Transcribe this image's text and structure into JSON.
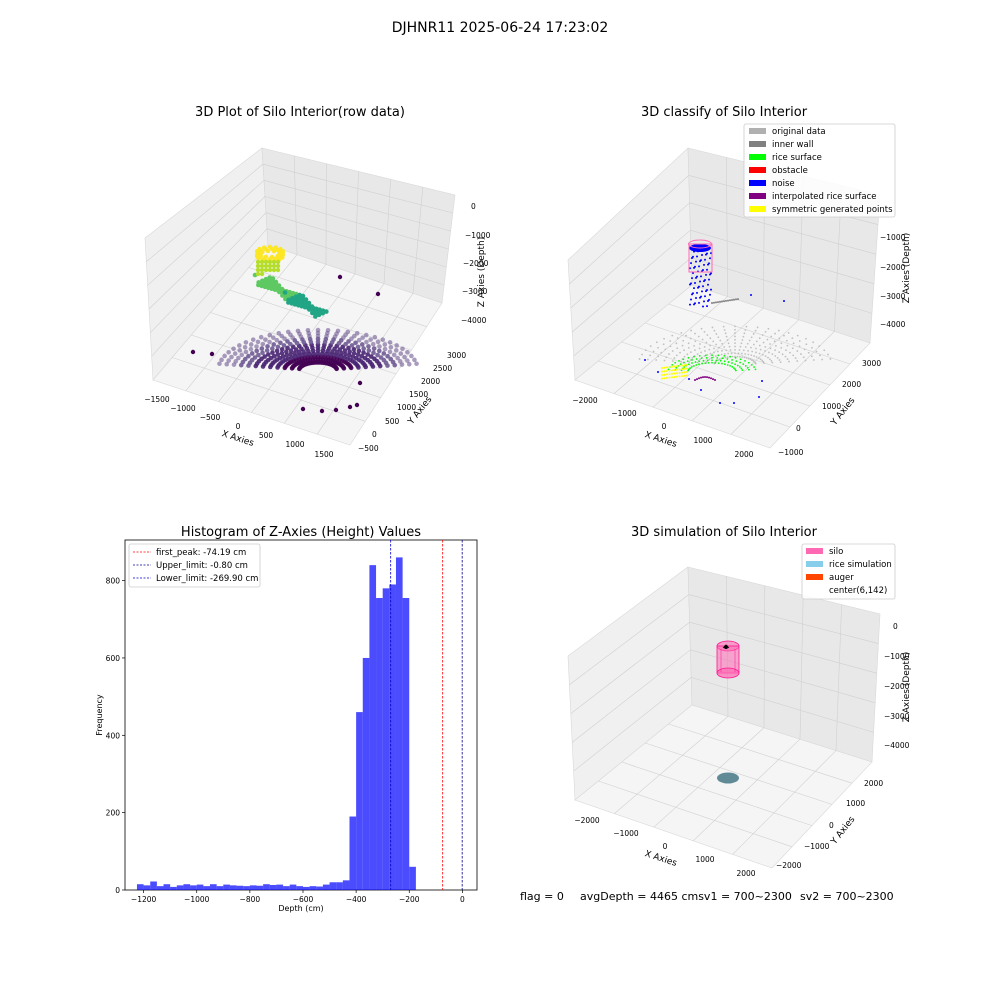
{
  "suptitle": "DJHNR11 2025-06-24 17:23:02",
  "panel_raw": {
    "title": "3D Plot of Silo Interior(row data)",
    "xlabel": "X Axies",
    "ylabel": "Y Axies",
    "zlabel": "Z Axies (Depth)",
    "xticks": [
      "−1500",
      "−1000",
      "−500",
      "0",
      "500",
      "1000",
      "1500"
    ],
    "yticks": [
      "−500",
      "0",
      "500",
      "1000",
      "1500",
      "2000",
      "2500",
      "3000"
    ],
    "zticks": [
      "0",
      "−1000",
      "−2000",
      "−3000",
      "−4000"
    ]
  },
  "panel_classify": {
    "title": "3D classify of Silo Interior",
    "xlabel": "X Axies",
    "ylabel": "Y Axies",
    "zlabel": "Z Axies (Depth)",
    "xticks": [
      "−2000",
      "−1000",
      "0",
      "1000",
      "2000"
    ],
    "yticks": [
      "−1000",
      "0",
      "1000",
      "2000",
      "3000"
    ],
    "zticks": [
      "−1000",
      "−2000",
      "−3000",
      "−4000"
    ],
    "legend": [
      {
        "label": "original data",
        "color": "#b0b0b0"
      },
      {
        "label": "inner wall",
        "color": "#808080"
      },
      {
        "label": "rice surface",
        "color": "#00ff00"
      },
      {
        "label": "obstacle",
        "color": "#ff0000"
      },
      {
        "label": "noise",
        "color": "#0000ff"
      },
      {
        "label": "interpolated rice surface",
        "color": "#800080"
      },
      {
        "label": "symmetric generated points",
        "color": "#ffff00"
      }
    ]
  },
  "panel_sim": {
    "title": "3D simulation of Silo Interior",
    "xlabel": "X Axies",
    "ylabel": "Y Axies",
    "zlabel": "Z Axies (Depth)",
    "xticks": [
      "−2000",
      "−1000",
      "0",
      "1000",
      "2000"
    ],
    "yticks": [
      "−2000",
      "−1000",
      "0",
      "1000",
      "2000"
    ],
    "zticks": [
      "0",
      "−1000",
      "−2000",
      "−3000",
      "−4000"
    ],
    "legend": [
      {
        "label": "silo",
        "color": "#ff69b4"
      },
      {
        "label": "rice simulation",
        "color": "#87ceeb"
      },
      {
        "label": "auger",
        "color": "#ff4500"
      },
      {
        "label": "center(6,142)",
        "color": ""
      }
    ]
  },
  "footer": {
    "flag": "flag = 0",
    "avg": "avgDepth = 4465 cmsv1 = 700~2300",
    "sv2": "sv2 = 700~2300"
  },
  "chart_data": {
    "type": "bar",
    "title": "Histogram of Z-Axies (Height) Values",
    "xlabel": "Depth (cm)",
    "ylabel": "Frequency",
    "xlim": [
      -1270,
      55
    ],
    "ylim": [
      0,
      905
    ],
    "xticks": [
      -1200,
      -1000,
      -800,
      -600,
      -400,
      -200,
      0
    ],
    "xtick_labels": [
      "−1200",
      "−1000",
      "−800",
      "−600",
      "−400",
      "−200",
      "0"
    ],
    "yticks": [
      0,
      200,
      400,
      600,
      800
    ],
    "bin_edges_start": -1225,
    "bin_width": 25,
    "values": [
      15,
      12,
      22,
      10,
      15,
      8,
      12,
      15,
      12,
      14,
      10,
      15,
      10,
      14,
      12,
      11,
      10,
      12,
      11,
      15,
      13,
      14,
      10,
      14,
      10,
      8,
      10,
      9,
      14,
      20,
      20,
      25,
      190,
      460,
      600,
      840,
      755,
      780,
      790,
      860,
      755,
      60
    ],
    "color": "#0000ff",
    "lines": [
      {
        "x": -74.19,
        "label": "first_peak: -74.19 cm",
        "color": "#ff0000"
      },
      {
        "x": -0.8,
        "label": "Upper_limit: -0.80 cm",
        "color": "#00008b"
      },
      {
        "x": -269.9,
        "label": "Lower_limit: -269.90 cm",
        "color": "#0000cd"
      }
    ],
    "legend_position": "upper-left"
  }
}
